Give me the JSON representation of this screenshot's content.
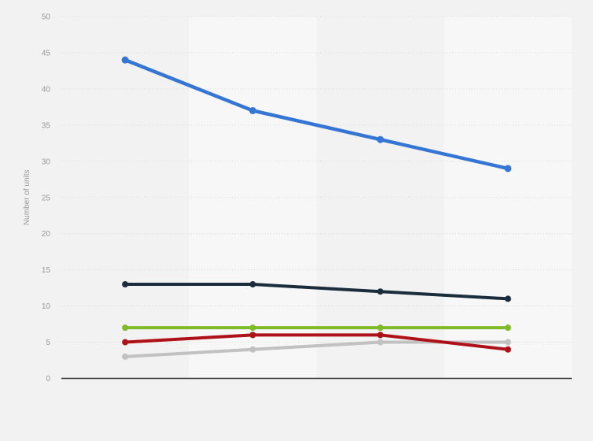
{
  "page": {
    "background_color": "#f2f2f2"
  },
  "chart_data": {
    "type": "line",
    "title": "",
    "xlabel": "",
    "ylabel": "Number of units",
    "categories": [
      "",
      "",
      "",
      ""
    ],
    "x_axis_labels_visible": false,
    "ylim": [
      0,
      50
    ],
    "yticks": [
      0,
      5,
      10,
      15,
      20,
      25,
      30,
      35,
      40,
      45,
      50
    ],
    "grid": "horizontal-dotted",
    "legend": "none",
    "plot_bands": "alternating vertical bands, lighter over 2nd and 4th category columns",
    "colors": {
      "background": "#f2f2f2",
      "plot_band_light": "#f7f7f7",
      "gridline": "#d9d9d9",
      "axis_line": "#333333",
      "tick_label": "#999999",
      "axis_title": "#999999"
    },
    "series": [
      {
        "name": "gray",
        "color": "#c1c1c1",
        "line_width": 4,
        "marker_radius": 4,
        "values": [
          3,
          4,
          5,
          5
        ]
      },
      {
        "name": "dark-red",
        "color": "#ae1117",
        "line_width": 4,
        "marker_radius": 4,
        "values": [
          5,
          6,
          6,
          4
        ]
      },
      {
        "name": "green",
        "color": "#7fba28",
        "line_width": 4,
        "marker_radius": 4,
        "values": [
          7,
          7,
          7,
          7
        ]
      },
      {
        "name": "dark-navy",
        "color": "#1b2d3d",
        "line_width": 4,
        "marker_radius": 4,
        "values": [
          13,
          13,
          12,
          11
        ]
      },
      {
        "name": "blue",
        "color": "#3575d4",
        "line_width": 4.5,
        "marker_radius": 4.5,
        "values": [
          44,
          37,
          33,
          29
        ]
      }
    ]
  }
}
